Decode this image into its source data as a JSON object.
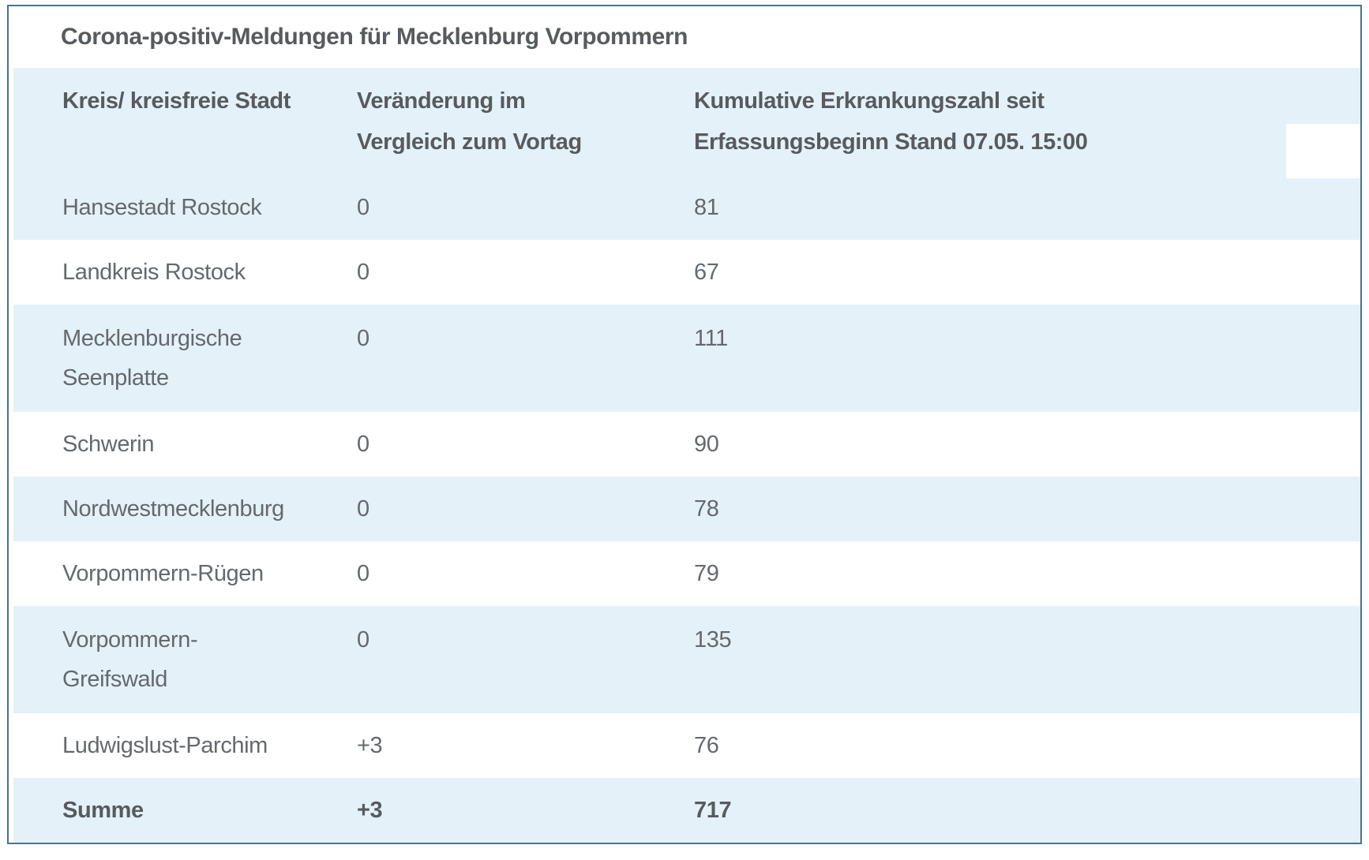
{
  "chart_data": {
    "type": "table",
    "title": "Corona-positiv-Meldungen für Mecklenburg Vorpommern",
    "columns": [
      "Kreis/ kreisfreie Stadt",
      "Veränderung im Vergleich zum Vortag",
      "Kumulative Erkrankungszahl seit Erfassungsbeginn Stand 07.05. 15:00"
    ],
    "rows": [
      [
        "Hansestadt Rostock",
        "0",
        81
      ],
      [
        "Landkreis Rostock",
        "0",
        67
      ],
      [
        "Mecklenburgische Seenplatte",
        "0",
        111
      ],
      [
        "Schwerin",
        "0",
        90
      ],
      [
        "Nordwestmecklenburg",
        "0",
        78
      ],
      [
        "Vorpommern-Rügen",
        "0",
        79
      ],
      [
        "Vorpommern-Greifswald",
        "0",
        135
      ],
      [
        "Ludwigslust-Parchim",
        "+3",
        76
      ],
      [
        "Summe",
        "+3",
        717
      ]
    ]
  },
  "table": {
    "title": "Corona-positiv-Meldungen für Mecklenburg Vorpommern",
    "header": {
      "col1_lines": [
        "Kreis/ kreisfreie Stadt"
      ],
      "col2_lines": [
        "Veränderung im",
        "Vergleich zum Vortag"
      ],
      "col3_lines": [
        "Kumulative Erkrankungszahl seit",
        "Erfassungsbeginn Stand 07.05. 15:00"
      ]
    },
    "rows": [
      {
        "name": "Hansestadt Rostock",
        "name_lines": [
          "Hansestadt Rostock"
        ],
        "change": "0",
        "total": "81",
        "shaded": true,
        "bold": false
      },
      {
        "name": "Landkreis Rostock",
        "name_lines": [
          "Landkreis Rostock"
        ],
        "change": "0",
        "total": "67",
        "shaded": false,
        "bold": false
      },
      {
        "name": "Mecklenburgische Seenplatte",
        "name_lines": [
          "Mecklenburgische",
          "Seenplatte"
        ],
        "change": "0",
        "total": "111",
        "shaded": true,
        "bold": false
      },
      {
        "name": "Schwerin",
        "name_lines": [
          "Schwerin"
        ],
        "change": "0",
        "total": "90",
        "shaded": false,
        "bold": false
      },
      {
        "name": "Nordwestmecklenburg",
        "name_lines": [
          "Nordwestmecklenburg"
        ],
        "change": "0",
        "total": "78",
        "shaded": true,
        "bold": false
      },
      {
        "name": "Vorpommern-Rügen",
        "name_lines": [
          "Vorpommern-Rügen"
        ],
        "change": "0",
        "total": "79",
        "shaded": false,
        "bold": false
      },
      {
        "name": "Vorpommern-Greifswald",
        "name_lines": [
          "Vorpommern-",
          "Greifswald"
        ],
        "change": "0",
        "total": "135",
        "shaded": true,
        "bold": false
      },
      {
        "name": "Ludwigslust-Parchim",
        "name_lines": [
          "Ludwigslust-Parchim"
        ],
        "change": "+3",
        "total": "76",
        "shaded": false,
        "bold": false
      },
      {
        "name": "Summe",
        "name_lines": [
          "Summe"
        ],
        "change": "+3",
        "total": "717",
        "shaded": true,
        "bold": true
      }
    ]
  },
  "colors": {
    "border": "#47748f",
    "shaded_row_bg": "#e4f1f9",
    "text": "#64696d",
    "heading_text": "#575b5e",
    "white_patch": "#ffffff"
  }
}
